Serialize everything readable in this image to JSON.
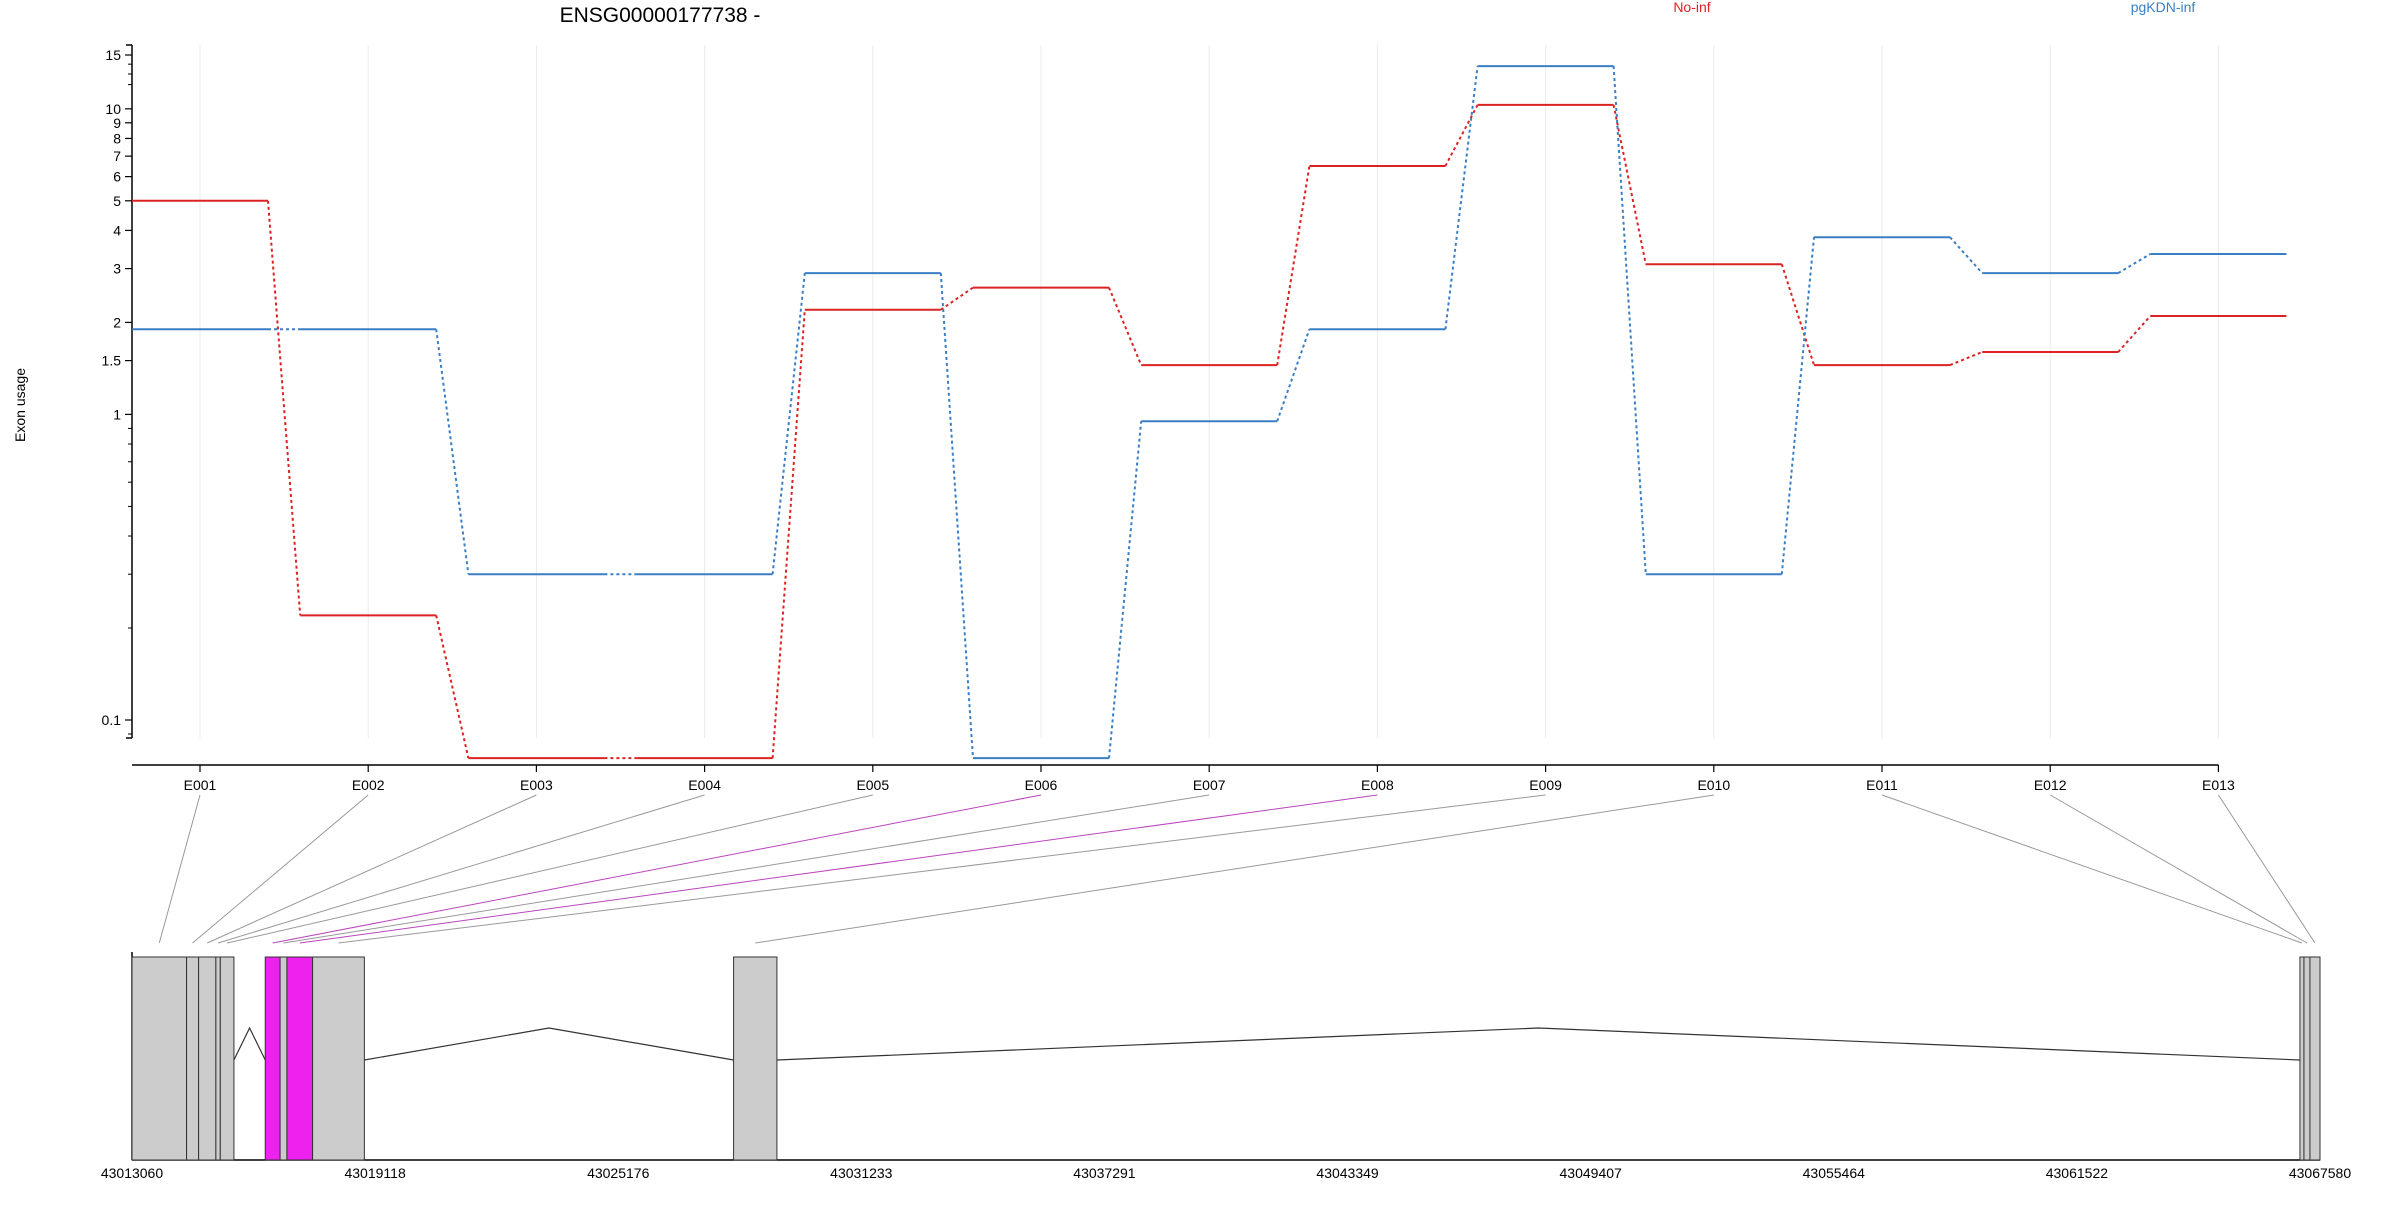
{
  "chart_data": {
    "type": "line",
    "title": "ENSG00000177738 -",
    "ylabel": "Exon usage",
    "y_scale": "log",
    "ylim": [
      0.07,
      16
    ],
    "y_ticks": [
      {
        "value": 15,
        "label": "15"
      },
      {
        "value": 10,
        "label": "10"
      },
      {
        "value": 9,
        "label": "9"
      },
      {
        "value": 8,
        "label": "8"
      },
      {
        "value": 7,
        "label": "7"
      },
      {
        "value": 6,
        "label": "6"
      },
      {
        "value": 5,
        "label": "5"
      },
      {
        "value": 4,
        "label": "4"
      },
      {
        "value": 3,
        "label": "3"
      },
      {
        "value": 2,
        "label": "2"
      },
      {
        "value": 1.5,
        "label": "1.5"
      },
      {
        "value": 1,
        "label": "1"
      },
      {
        "value": 0.1,
        "label": "0.1"
      }
    ],
    "categories": [
      "E001",
      "E002",
      "E003",
      "E004",
      "E005",
      "E006",
      "E007",
      "E008",
      "E009",
      "E010",
      "E011",
      "E012",
      "E013"
    ],
    "grid": "vertical",
    "legend_position": "top",
    "series": [
      {
        "name": "No-inf",
        "color": "#dd2222",
        "values": [
          5.0,
          0.22,
          0.075,
          0.075,
          2.2,
          2.6,
          1.45,
          6.5,
          10.3,
          3.1,
          1.45,
          1.6,
          2.1
        ]
      },
      {
        "name": "pgKDN-inf",
        "color": "#3a7fc4",
        "values": [
          1.9,
          1.9,
          0.3,
          0.3,
          2.9,
          0.075,
          0.95,
          1.9,
          13.8,
          0.3,
          3.8,
          2.9,
          3.35
        ]
      }
    ],
    "gene_model": {
      "start": 43013060,
      "end": 43067580,
      "ticks": [
        "43013060",
        "43019118",
        "43025176",
        "43031233",
        "43037291",
        "43043349",
        "43049407",
        "43055464",
        "43061522",
        "43067580"
      ],
      "exons": [
        {
          "id": "E001",
          "start": 43013060,
          "end": 43014420,
          "highlight": false
        },
        {
          "id": "E002",
          "start": 43014420,
          "end": 43014720,
          "highlight": false
        },
        {
          "id": "E003",
          "start": 43014720,
          "end": 43015150,
          "highlight": false
        },
        {
          "id": "E004",
          "start": 43015150,
          "end": 43015260,
          "highlight": false
        },
        {
          "id": "E005",
          "start": 43015260,
          "end": 43015600,
          "highlight": false
        },
        {
          "id": "E006",
          "start": 43016380,
          "end": 43016750,
          "highlight": true
        },
        {
          "id": "E007",
          "start": 43016750,
          "end": 43016920,
          "highlight": false
        },
        {
          "id": "E008",
          "start": 43016920,
          "end": 43017560,
          "highlight": true
        },
        {
          "id": "E009",
          "start": 43017560,
          "end": 43018850,
          "highlight": false
        },
        {
          "id": "E010",
          "start": 43028050,
          "end": 43029130,
          "highlight": false
        },
        {
          "id": "E011",
          "start": 43067080,
          "end": 43067180,
          "highlight": false
        },
        {
          "id": "E012",
          "start": 43067180,
          "end": 43067330,
          "highlight": false
        },
        {
          "id": "E013",
          "start": 43067330,
          "end": 43067580,
          "highlight": false
        }
      ]
    }
  },
  "colors": {
    "highlight": "#ee22ee",
    "exon": "#cccccc",
    "axis": "#000000"
  }
}
